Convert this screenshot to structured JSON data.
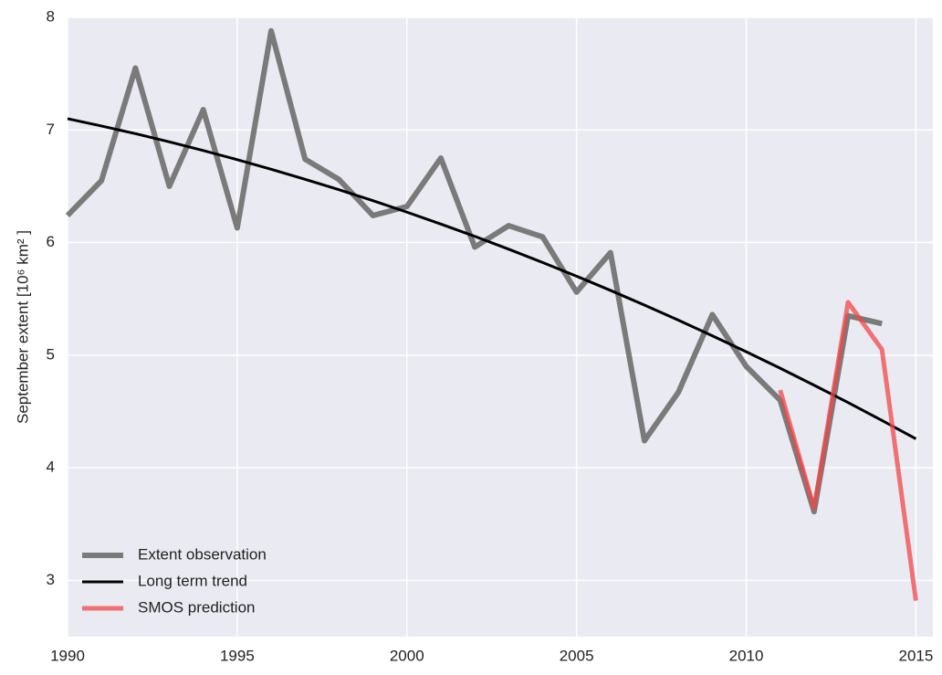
{
  "chart_data": {
    "type": "line",
    "y_label": "September extent [10⁶ km² ]",
    "x": [
      1990,
      1991,
      1992,
      1993,
      1994,
      1995,
      1996,
      1997,
      1998,
      1999,
      2000,
      2001,
      2002,
      2003,
      2004,
      2005,
      2006,
      2007,
      2008,
      2009,
      2010,
      2011,
      2012,
      2013,
      2014,
      2015
    ],
    "series": [
      {
        "name": "Extent observation",
        "color": "#6e6e6e",
        "width": 6,
        "opacity": 0.9,
        "values": [
          6.24,
          6.55,
          7.55,
          6.5,
          7.18,
          6.13,
          7.88,
          6.74,
          6.56,
          6.24,
          6.32,
          6.75,
          5.96,
          6.15,
          6.05,
          5.56,
          5.91,
          4.24,
          4.67,
          5.36,
          4.9,
          4.6,
          3.61,
          5.35,
          5.28,
          null
        ]
      },
      {
        "name": "Long term trend",
        "color": "#000000",
        "width": 3,
        "opacity": 1,
        "values": [
          7.1,
          7.035,
          6.967,
          6.894,
          6.817,
          6.736,
          6.651,
          6.562,
          6.469,
          6.372,
          6.27,
          6.164,
          6.055,
          5.941,
          5.823,
          5.701,
          5.575,
          5.445,
          5.311,
          5.172,
          5.03,
          4.884,
          4.733,
          4.579,
          4.42,
          4.257
        ]
      },
      {
        "name": "SMOS prediction",
        "color": "#f04848",
        "width": 5,
        "opacity": 0.75,
        "values": [
          null,
          null,
          null,
          null,
          null,
          null,
          null,
          null,
          null,
          null,
          null,
          null,
          null,
          null,
          null,
          null,
          null,
          null,
          null,
          null,
          null,
          4.69,
          3.64,
          5.47,
          5.05,
          2.82
        ]
      }
    ],
    "xlim": [
      1990,
      2015.5
    ],
    "xticks": [
      1990,
      1995,
      2000,
      2005,
      2010,
      2015
    ],
    "ylim": [
      2.5,
      8
    ],
    "yticks": [
      3,
      4,
      5,
      6,
      7,
      8
    ],
    "grid": true,
    "legend": "lower left"
  }
}
